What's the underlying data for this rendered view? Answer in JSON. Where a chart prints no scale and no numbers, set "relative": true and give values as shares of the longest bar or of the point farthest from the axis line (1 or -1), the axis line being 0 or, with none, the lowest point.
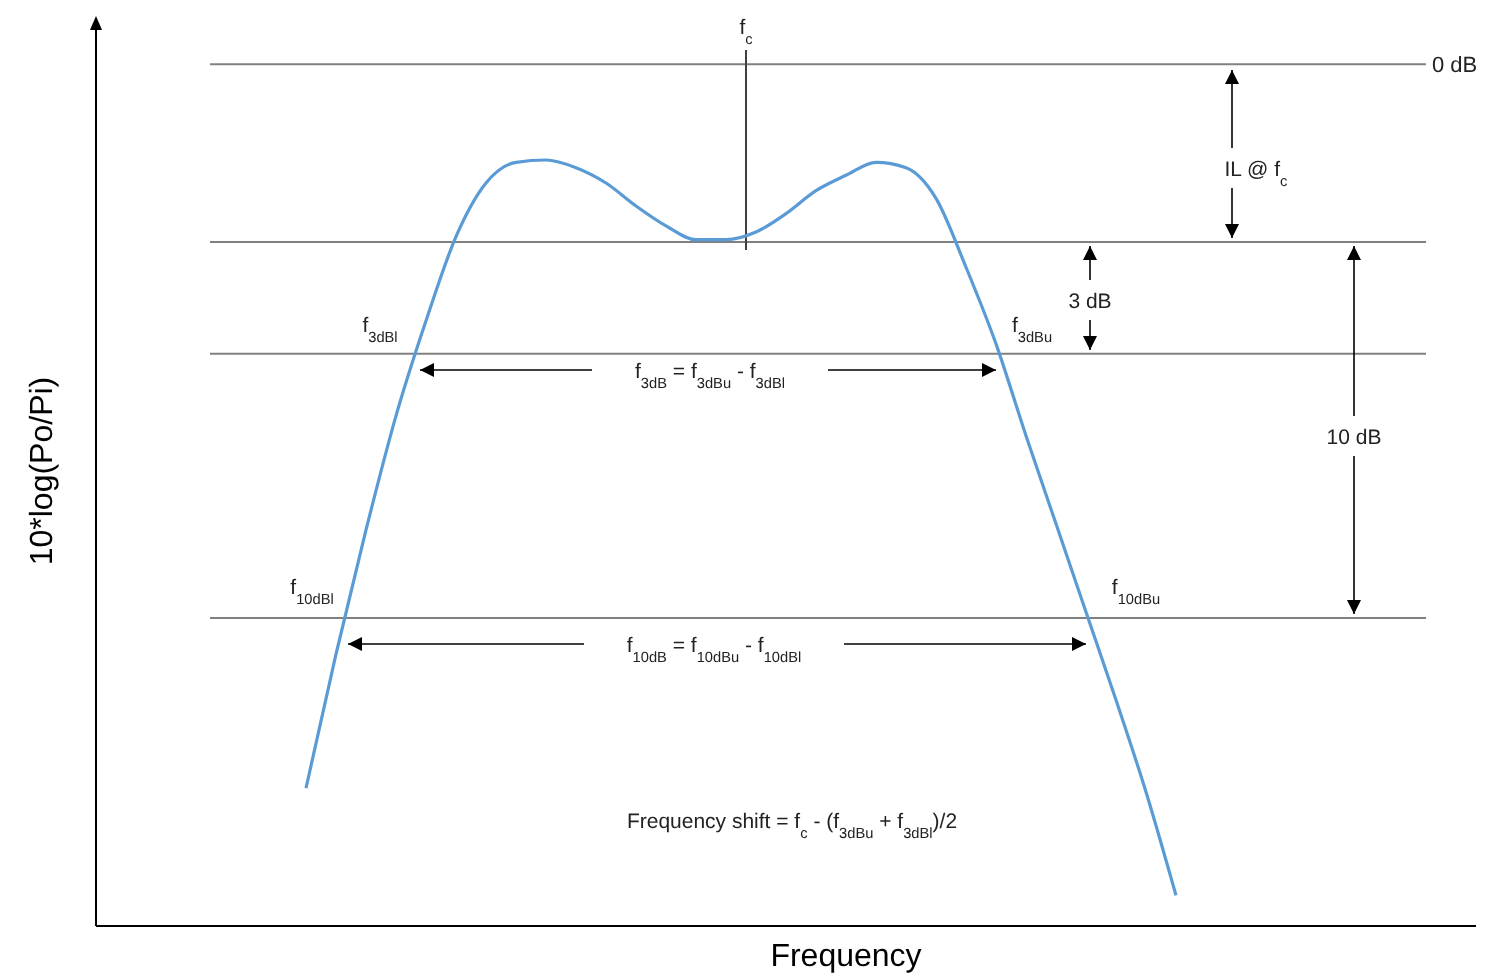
{
  "chart_data": {
    "type": "line",
    "relative": true,
    "xlabel": "Frequency",
    "ylabel": "10*log(Po/Pi)",
    "categories": [
      null,
      null,
      null,
      null,
      null,
      null,
      null,
      null,
      null,
      null,
      null,
      null,
      null,
      null,
      null,
      null,
      null,
      null,
      null,
      null,
      null,
      null,
      null,
      null,
      null,
      null,
      null,
      null,
      null,
      null,
      null,
      null,
      null,
      null,
      null,
      null,
      null,
      null,
      null,
      null,
      null,
      null,
      null,
      null,
      null,
      null
    ],
    "series": [
      {
        "color": "#5b9bd5",
        "values": [
          null,
          null,
          null,
          null,
          null,
          null,
          null,
          0.18,
          0.355,
          0.517,
          0.666,
          0.79,
          0.9,
          0.97,
          0.997,
          1,
          0.99,
          0.97,
          0.94,
          0.914,
          0.896,
          0.896,
          0.906,
          0.93,
          0.96,
          0.98,
          0.997,
          0.99,
          0.95,
          0.86,
          0.76,
          0.64,
          0.525,
          0.41,
          0.295,
          0.175,
          0.04,
          null,
          null,
          null,
          null,
          null,
          null,
          null,
          null,
          null
        ]
      }
    ],
    "ref_lines": [
      {
        "axis": "y",
        "value": 1.125,
        "label": "0 dB",
        "color": "#808080"
      },
      {
        "axis": "y",
        "value": 0.893,
        "color": "#808080"
      },
      {
        "axis": "y",
        "value": 0.747,
        "color": "#808080"
      },
      {
        "axis": "y",
        "value": 0.402,
        "color": "#808080"
      }
    ],
    "annotations": [
      "IL @ f$_{c}$",
      "3 dB",
      "10 dB",
      "f$_{3dBl}$",
      "f$_{3dBu}$",
      "f$_{10dBl}$",
      "f$_{10dBu}$",
      "f$_{3dB}$ = f$_{3dBu}$ - f$_{3dBl}$",
      "f$_{10dB}$ = f$_{10dBu}$ - f$_{10dBl}$",
      "Frequency shift = f$_{c}$ - (f$_{3dBu}$ + f$_{3dBl}$)/2",
      "f$_{c}$"
    ],
    "marker": "none",
    "line_style": "solid"
  }
}
